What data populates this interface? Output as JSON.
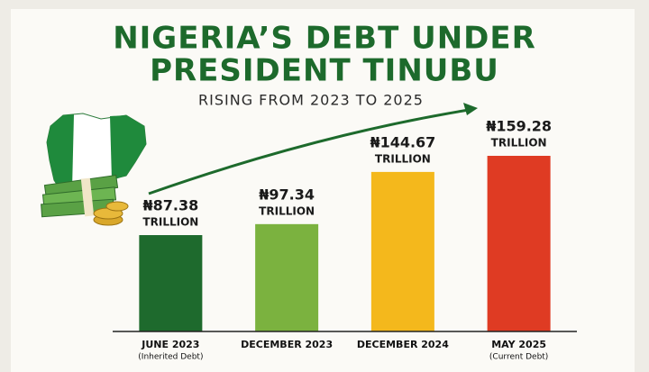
{
  "chart_data": {
    "type": "bar",
    "title": [
      "NIGERIA’S DEBT UNDER",
      "PRESIDENT TINUBU"
    ],
    "subtitle": "RISING FROM 2023 TO 2025",
    "categories": [
      "JUNE 2023",
      "DECEMBER 2023",
      "DECEMBER 2024",
      "MAY 2025"
    ],
    "category_notes": [
      "(Inherited Debt)",
      null,
      null,
      "(Current Debt)"
    ],
    "values": [
      87.38,
      97.34,
      144.67,
      159.28
    ],
    "value_labels": [
      "₦87.38",
      "₦97.34",
      "₦144.67",
      "₦159.28"
    ],
    "value_unit": "TRILLION",
    "colors": [
      "#1e6a2d",
      "#7bb23f",
      "#f4b81c",
      "#df3b23"
    ]
  }
}
